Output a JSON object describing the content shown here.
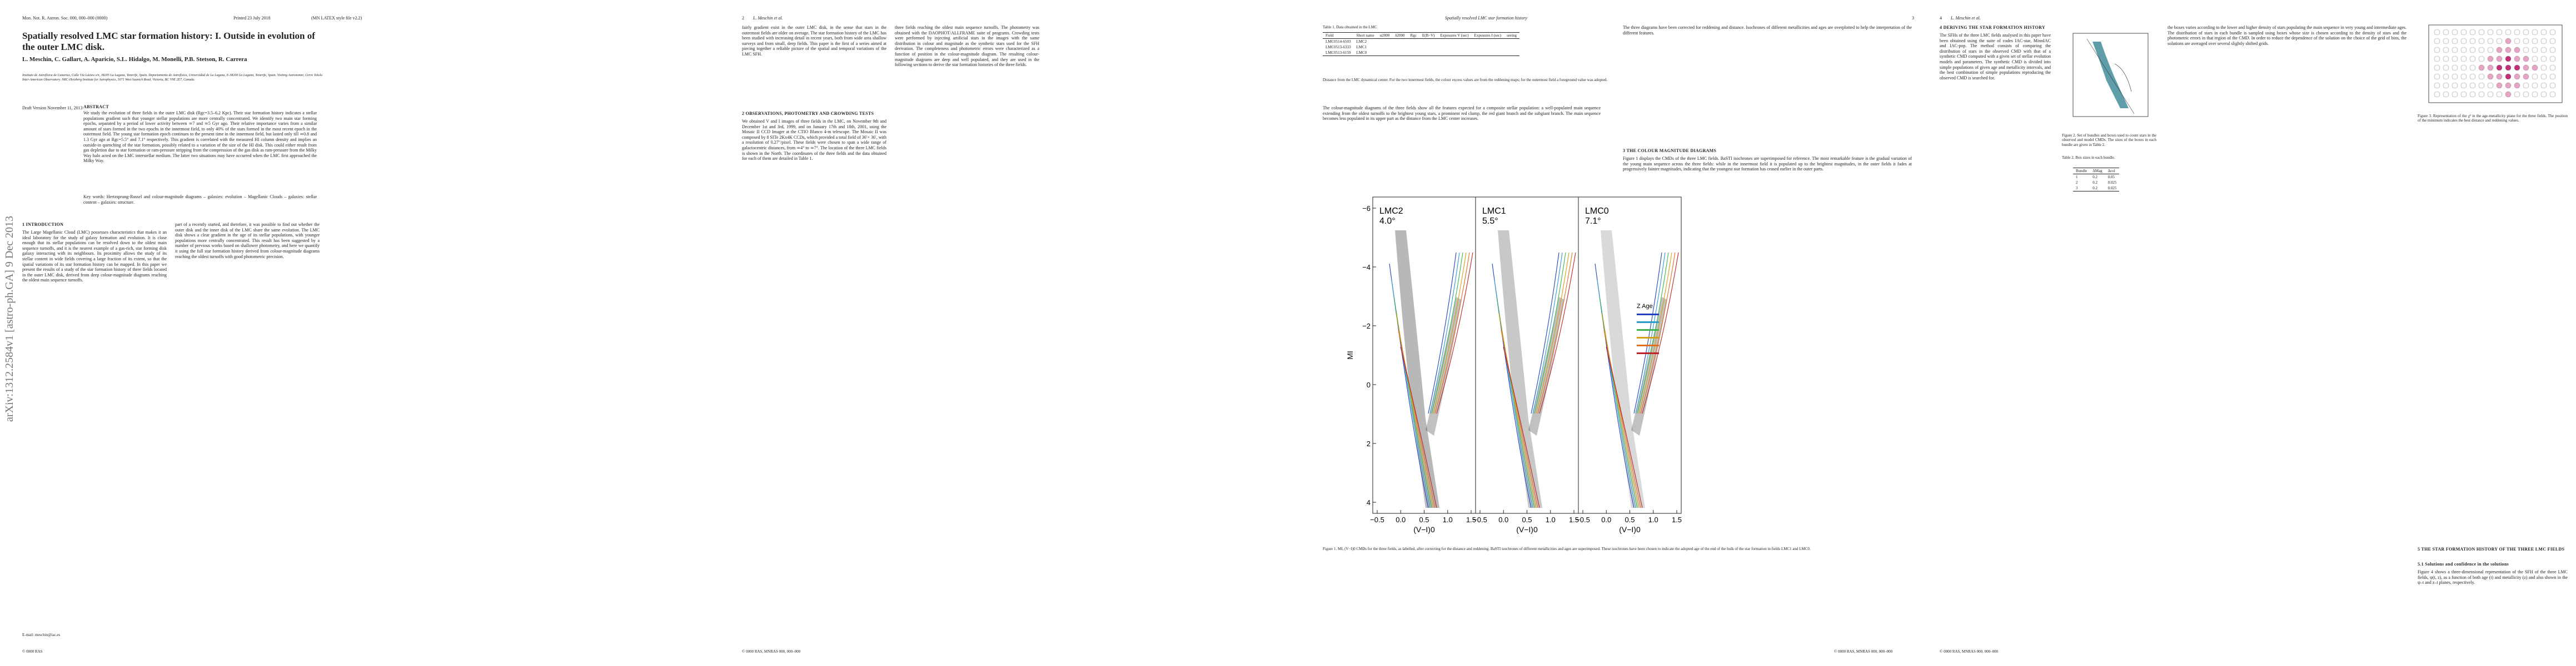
{
  "arxiv_stamp": "arXiv:1312.2584v1 [astro-ph.GA] 9 Dec 2013",
  "page1": {
    "header_left": "Mon. Not. R. Astron. Soc. 000, 000–000 (0000)",
    "header_mid": "Printed 23 July 2018",
    "header_right": "(MN LATEX style file v2.2)",
    "title": "Spatially resolved LMC star formation history: I. Outside in evolution of the outer LMC disk.",
    "authors": "L. Meschin, C. Gallart, A. Aparicio, S.L. Hidalgo, M. Monelli, P.B. Stetson, R. Carrera",
    "affiliations": "Instituto de Astrofísica de Canarias, Calle Vía Láctea s/n, 38205 La Laguna, Tenerife, Spain. Departamento de Astrofísica, Universidad de La Laguna, E-38200 La Laguna, Tenerife, Spain. Visiting Astronomer, Cerro Tololo Inter-American Observatory. NRC-Herzberg Institute for Astrophysics, 5071 West Saanich Road, Victoria, BC V9E 2E7, Canada.",
    "draft": "Draft Version November 11, 2013",
    "abstract_heading": "ABSTRACT",
    "abstract": "We study the evolution of three fields in the outer LMC disk (Rgc=3.5–6.2 Kpc). Their star formation history indicates a stellar populations gradient such that younger stellar populations are more centrally concentrated. We identify two main star forming epochs, separated by a period of lower activity between ≃7 and ≃5 Gyr ago. Their relative importance varies from a similar amount of stars formed in the two epochs in the innermost field, to only 40% of the stars formed in the most recent epoch in the outermost field. The young star formation epoch continues to the present time in the innermost field, but lasted only till ≃0.8 and 1.3 Gyr ago at Rgc=5.5° and 7.1° respectively. This gradient is correlated with the measured HI column density and implies an outside-in quenching of the star formation, possibly related to a variation of the size of the HI disk. This could either result from gas depletion due to star formation or ram-pressure stripping from the compression of the gas disk as ram-pressure from the Milky Way halo acted on the LMC interstellar medium. The latter two situations may have occurred when the LMC first approached the Milky Way.",
    "keywords": "Key words: Hertzsprung-Russel and colour-magnitude diagrams – galaxies: evolution – Magellanic Clouds – galaxies: stellar content – galaxies: structure.",
    "section1": "1 INTRODUCTION",
    "intro_col1": "The Large Magellanic Cloud (LMC) possesses characteristics that makes it an ideal laboratory for the study of galaxy formation and evolution. It is close enough that its stellar populations can be resolved down to the oldest main sequence turnoffs, and it is the nearest example of a gas-rich, star forming disk galaxy interacting with its neighbours. Its proximity allows the study of its stellar content in wide fields covering a large fraction of its extent, so that the spatial variations of its star formation history can be mapped. In this paper we present the results of a study of the star formation history of three fields located in the outer LMC disk, derived from deep colour-magnitude diagrams reaching the oldest main sequence turnoffs.",
    "intro_col2": "part of a recently started, and therefore, it was possible to find out whether the outer disk and the inner disk of the LMC share the same evolution. The LMC disk shows a clear gradient in the age of its stellar populations, with younger populations more centrally concentrated. This result has been suggested by a number of previous works based on shallower photometry, and here we quantify it using the full star formation history derived from colour-magnitude diagrams reaching the oldest turnoffs with good photometric precision.",
    "email": "E-mail: meschin@iac.es",
    "footer": "© 0000 RAS"
  },
  "page2": {
    "header_num": "2",
    "header_auth": "L. Meschin et al.",
    "col1_top": "fairly gradient exist in the outer LMC disk, in the sense that stars in the outermost fields are older on average. The star formation history of the LMC has been studied with increasing detail in recent years, both from wide area shallow surveys and from small, deep fields. This paper is the first of a series aimed at piecing together a reliable picture of the spatial and temporal variations of the LMC SFH.",
    "section2": "2 OBSERVATIONS, PHOTOMETRY AND CROWDING TESTS",
    "col1_bottom": "We obtained V and I images of three fields in the LMC, on November 9th and December 1st and 3rd, 1999, and on January 17th and 18th, 2001, using the Mosaic II CCD Imager at the CTIO Blanco 4-m telescope. The Mosaic II was composed by 8 SITe 2Kx4K CCDs, which provided a total field of 36′× 36′, with a resolution of 0.27″/pixel. These fields were chosen to span a wide range of galactocentric distances, from ≃4° to ≃7°. The location of the three LMC fields is shown in the North. The coordinates of the three fields and the data obtained for each of them are detailed in Table 1.",
    "col2": "three fields reaching the oldest main sequence turnoffs. The photometry was obtained with the DAOPHOT/ALLFRAME suite of programs. Crowding tests were performed by injecting artificial stars in the images with the same distribution in colour and magnitude as the synthetic stars used for the SFH derivation. The completeness and photometric errors were characterized as a function of position in the colour-magnitude diagram. The resulting colour-magnitude diagrams are deep and well populated, and they are used in the following sections to derive the star formation histories of the three fields.",
    "footer": "© 0000 RAS, MNRAS 000, 000–000"
  },
  "page3": {
    "header_title": "Spatially resolved LMC star formation history",
    "header_num": "3",
    "table1_title": "Table 1. Data obtained in the LMC",
    "table1_head": [
      "Field",
      "Short name",
      "α2000",
      "δ2000",
      "Rgc",
      "E(B−V)",
      "Exposures V (sec)",
      "Exposures I (sec)",
      "seeing"
    ],
    "table1_rows": [
      [
        "LMC0514-6503",
        "LMC2"
      ],
      [
        "LMC0513-6333",
        "LMC1"
      ],
      [
        "LMC0513-6159",
        "LMC0"
      ]
    ],
    "table1_note": "Distance from the LMC dynamical center. For the two innermost fields, the colour excess values are from the reddening maps; for the outermost field a foreground value was adopted.",
    "col1_text": "The colour-magnitude diagrams of the three fields show all the features expected for a composite stellar population: a well-populated main sequence extending from the oldest turnoffs to the brightest young stars, a prominent red clump, the red giant branch and the subgiant branch. The main sequence becomes less populated in its upper part as the distance from the LMC center increases.",
    "col2_text": "The three diagrams have been corrected for reddening and distance. Isochrones of different metallicities and ages are overplotted to help the interpretation of the different features.",
    "section3": "3 THE COLOUR MAGNITUDE DIAGRAMS",
    "col2_text2": "Figure 1 displays the CMDs of the three LMC fields. BaSTI isochrones are superimposed for reference. The most remarkable feature is the gradual variation of the young main sequence across the three fields: while in the innermost field it is populated up to the brightest magnitudes, in the outer fields it fades at progressively fainter magnitudes, indicating that the youngest star formation has ceased earlier in the outer parts.",
    "figure1": {
      "panels": [
        {
          "name": "LMC2",
          "radius": "4.0°"
        },
        {
          "name": "LMC1",
          "radius": "5.5°"
        },
        {
          "name": "LMC0",
          "radius": "7.1°"
        }
      ],
      "yticks": [
        "−6",
        "−4",
        "−2",
        "0",
        "2",
        "4"
      ],
      "xticks": [
        "−0.5",
        "0.0",
        "0.5",
        "1.0",
        "1.5"
      ],
      "xlabel": "(V−I)0",
      "ylabel": "MI",
      "legend_head": "Z   Age"
    },
    "figure1_caption": "Figure 1. MI, (V−I)0 CMDs for the three fields, as labelled, after correcting for the distance and reddening. BaSTI isochrones of different metallicities and ages are superimposed. These isochrones have been chosen to indicate the adopted age of the end of the bulk of the star formation in fields LMC1 and LMC0.",
    "footer": "© 0000 RAS, MNRAS 000, 000–000"
  },
  "page4": {
    "header_num": "4",
    "header_auth": "L. Meschin et al.",
    "section4": "4 DERIVING THE STAR FORMATION HISTORY",
    "col1_text": "The SFHs of the three LMC fields analysed in this paper have been obtained using the suite of codes IAC-star, MinnIAC and IAC-pop. The method consists of comparing the distribution of stars in the observed CMD with that of a synthetic CMD computed with a given set of stellar evolution models and parameters. The synthetic CMD is divided into simple populations of given age and metallicity intervals, and the best combination of simple populations reproducing the observed CMD is searched for.",
    "figure2_caption": "Figure 2. Set of bundles and boxes used to count stars in the observed and model CMDs. The sizes of the boxes in each bundle are given in Table 2.",
    "table2_title": "Table 2. Box sizes in each bundle.",
    "table2_head": [
      "Bundle",
      "ΔMag",
      "Δcol"
    ],
    "table2_rows": [
      [
        "1",
        "0.2",
        "0.05"
      ],
      [
        "2",
        "0.2",
        "0.025"
      ],
      [
        "3",
        "0.2",
        "0.025"
      ]
    ],
    "col2_text": "the boxes varies according to the lower and higher density of stars populating the main sequence in very young and intermediate ages. The distribution of stars in each bundle is sampled using boxes whose size is chosen according to the density of stars and the photometric errors in that region of the CMD. In order to reduce the dependence of the solution on the choice of the grid of bins, the solutions are averaged over several slightly shifted grids.",
    "figure3_caption": "Figure 3. Representation of the χ² in the age-metallicity plane for the three fields. The position of the minimum indicates the best distance and reddening values.",
    "section5": "5 THE STAR FORMATION HISTORY OF THE THREE LMC FIELDS",
    "section51": "5.1 Solutions and confidence in the solutions",
    "col2_text2": "Figure 4 shows a three-dimensional representation of the SFH of the three LMC fields, ψ(t, z), as a function of both age (t) and metallicity (z) and also shown in the ψ–t and z–t planes, respectively.",
    "footer": "© 0000 RAS, MNRAS 000, 000–000"
  }
}
